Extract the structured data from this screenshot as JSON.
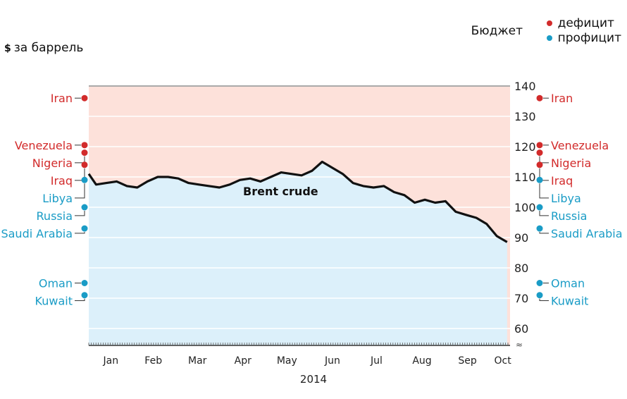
{
  "unit_label": "за баррель",
  "unit_symbol": "$",
  "legend": {
    "title": "Бюджет",
    "items": [
      {
        "label": "дефицит",
        "color": "#d22b2b"
      },
      {
        "label": "профицит",
        "color": "#1a9cc6"
      }
    ]
  },
  "colors": {
    "deficit": "#d22b2b",
    "surplus": "#1a9cc6",
    "deficit_zone": "#fde1da",
    "surplus_zone": "#dcf0fa",
    "line": "#111111"
  },
  "chart_data": {
    "type": "line",
    "title": "",
    "xlabel": "2014",
    "ylabel": "$ за баррель",
    "ylim": [
      55,
      140
    ],
    "yticks": [
      60,
      70,
      80,
      90,
      100,
      110,
      120,
      130,
      140
    ],
    "x_ticks": [
      "Jan",
      "Feb",
      "Mar",
      "Apr",
      "May",
      "Jun",
      "Jul",
      "Aug",
      "Sep",
      "Oct"
    ],
    "grid": true,
    "series": [
      {
        "name": "Brent crude",
        "x": [
          "2014-01-01",
          "2014-01-06",
          "2014-01-13",
          "2014-01-20",
          "2014-01-27",
          "2014-02-03",
          "2014-02-10",
          "2014-02-17",
          "2014-02-24",
          "2014-03-03",
          "2014-03-10",
          "2014-03-17",
          "2014-03-24",
          "2014-03-31",
          "2014-04-07",
          "2014-04-14",
          "2014-04-21",
          "2014-04-28",
          "2014-05-05",
          "2014-05-12",
          "2014-05-19",
          "2014-05-26",
          "2014-06-02",
          "2014-06-09",
          "2014-06-16",
          "2014-06-23",
          "2014-06-30",
          "2014-07-07",
          "2014-07-14",
          "2014-07-21",
          "2014-07-28",
          "2014-08-04",
          "2014-08-11",
          "2014-08-18",
          "2014-08-25",
          "2014-09-01",
          "2014-09-08",
          "2014-09-15",
          "2014-09-22",
          "2014-09-29",
          "2014-10-06",
          "2014-10-13"
        ],
        "values": [
          111,
          107.5,
          108,
          108.5,
          107,
          106.5,
          108.5,
          110,
          110,
          109.5,
          108,
          107.5,
          107,
          106.5,
          107.5,
          109,
          109.5,
          108.5,
          110,
          111.5,
          111,
          110.5,
          112,
          115,
          113,
          111,
          108,
          107,
          106.5,
          107,
          105,
          104,
          101.5,
          102.5,
          101.5,
          102,
          98.5,
          97.5,
          96.5,
          94.5,
          90.5,
          88.5
        ]
      }
    ],
    "annotations": [
      "Brent crude"
    ],
    "budget_breakeven": [
      {
        "country": "Iran",
        "value": 136,
        "status": "deficit"
      },
      {
        "country": "Venezuela",
        "value": 120.5,
        "status": "deficit"
      },
      {
        "country": "Nigeria",
        "value": 118,
        "status": "deficit"
      },
      {
        "country": "Iraq",
        "value": 114,
        "status": "deficit"
      },
      {
        "country": "Libya",
        "value": 109,
        "status": "surplus"
      },
      {
        "country": "Russia",
        "value": 100,
        "status": "surplus"
      },
      {
        "country": "Saudi Arabia",
        "value": 93,
        "status": "surplus"
      },
      {
        "country": "Oman",
        "value": 75,
        "status": "surplus"
      },
      {
        "country": "Kuwait",
        "value": 71,
        "status": "surplus"
      }
    ]
  }
}
